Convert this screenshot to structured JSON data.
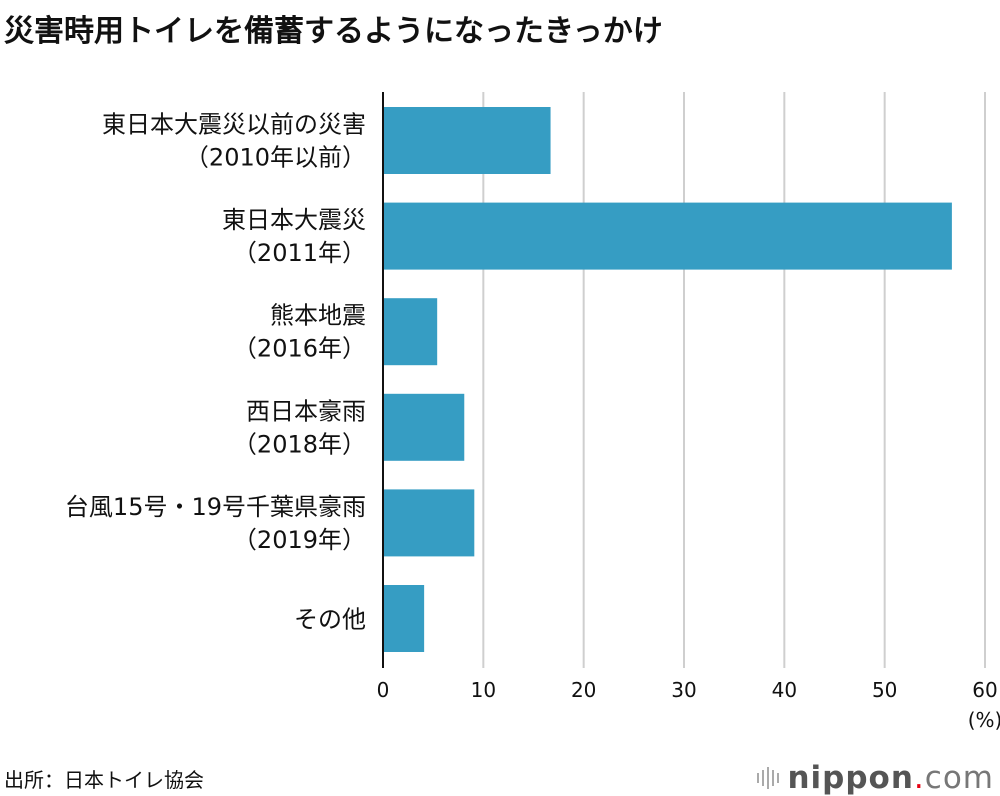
{
  "chart_data": {
    "type": "bar",
    "orientation": "horizontal",
    "title": "災害時用トイレを備蓄するようになったきっかけ",
    "categories": [
      [
        "東日本大震災以前の災害",
        "（2010年以前）"
      ],
      [
        "東日本大震災",
        "（2011年）"
      ],
      [
        "熊本地震",
        "（2016年）"
      ],
      [
        "西日本豪雨",
        "（2018年）"
      ],
      [
        "台風15号・19号千葉県豪雨",
        "（2019年）"
      ],
      [
        "その他"
      ]
    ],
    "values": [
      16.7,
      56.7,
      5.4,
      8.1,
      9.1,
      4.1
    ],
    "xticks": [
      "0",
      "10",
      "20",
      "30",
      "40",
      "50",
      "60"
    ],
    "xlim": [
      0,
      60
    ],
    "xlabel": "(%)",
    "grid": true,
    "bar_color": "#369dc3"
  },
  "source": "出所：日本トイレ協会",
  "logo": {
    "name": "nippon",
    "dot": ".",
    "suffix": "com"
  }
}
